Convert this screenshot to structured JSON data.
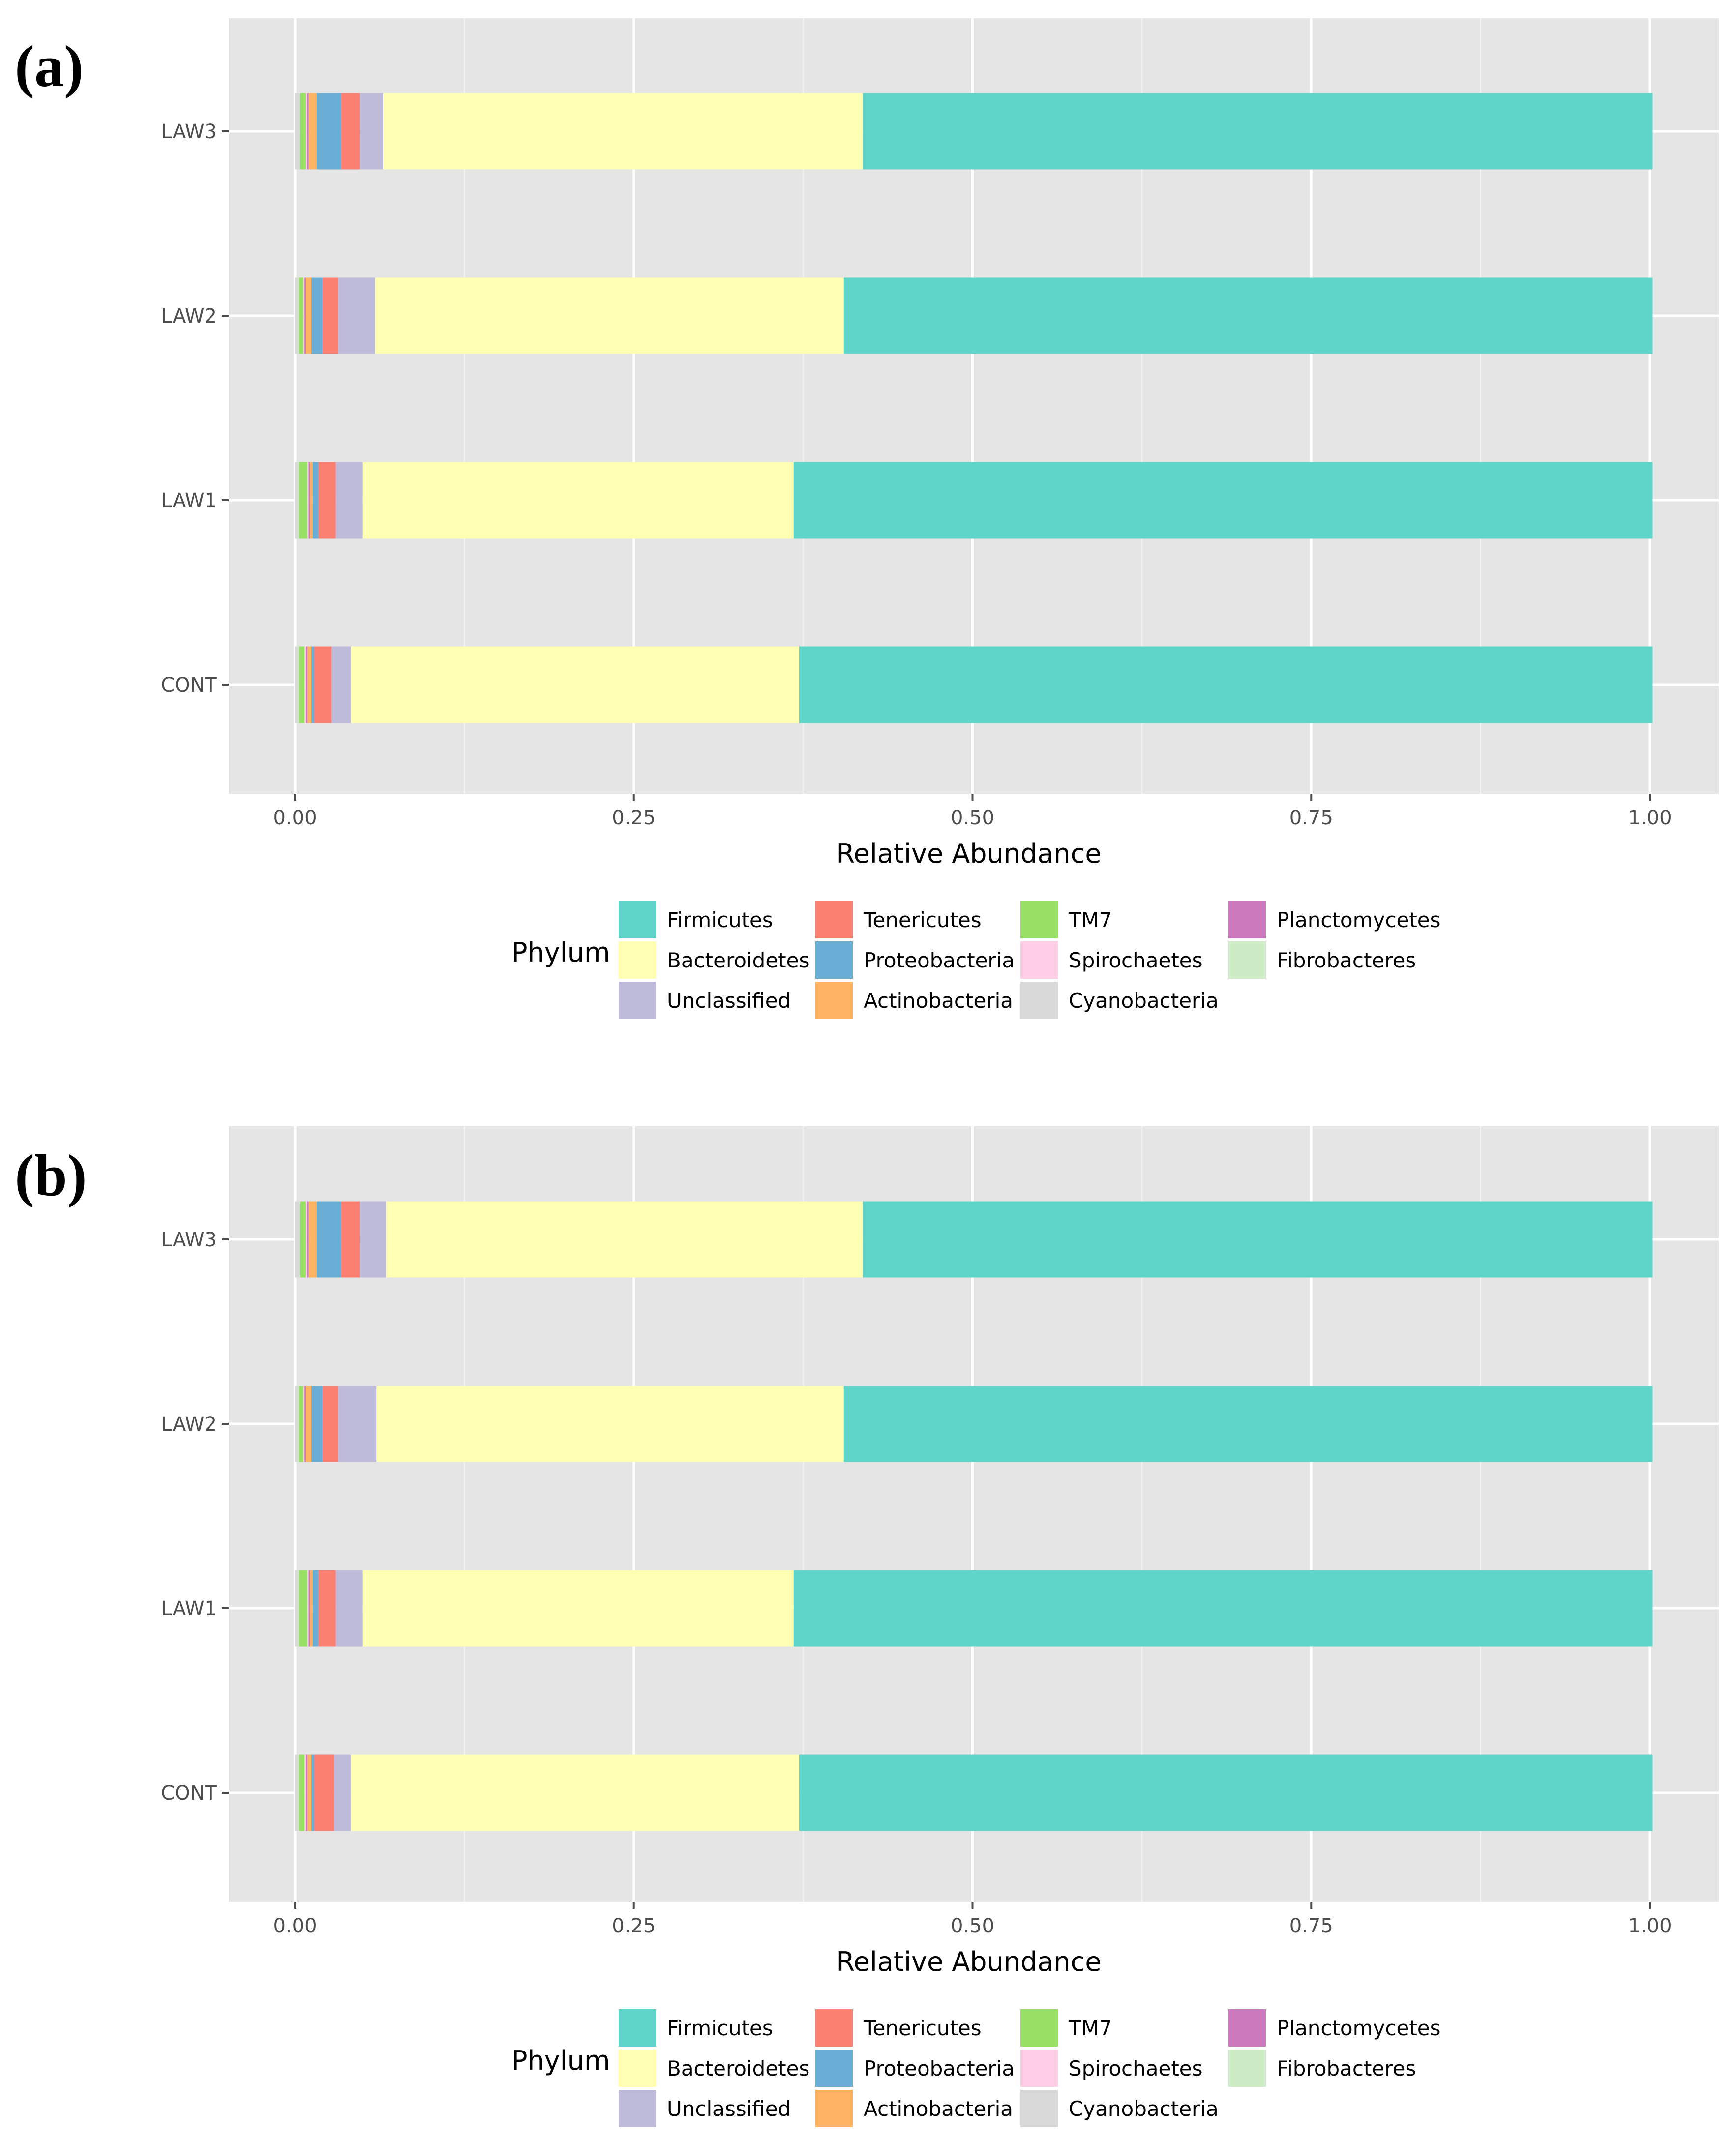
{
  "colors": {
    "panel_bg": "#e5e5e5",
    "grid_major": "#ffffff",
    "grid_minor": "#f0f0f0",
    "tick": "#4d4d4d"
  },
  "chart_data": [
    {
      "type": "bar",
      "orientation": "horizontal",
      "stacked": true,
      "panel_label": "(a)",
      "title": "",
      "xlabel": "Relative Abundance",
      "ylabel": "",
      "xlim": [
        0,
        1
      ],
      "x_ticks": [
        "0.00",
        "0.25",
        "0.50",
        "0.75",
        "1.00"
      ],
      "categories": [
        "CONT",
        "LAW1",
        "LAW2",
        "LAW3"
      ],
      "grid": true,
      "legend": {
        "title": "Phylum",
        "placement": "bottom",
        "columns": [
          [
            "Firmicutes",
            "Bacteroidetes",
            "Unclassified"
          ],
          [
            "Tenericutes",
            "Proteobacteria",
            "Actinobacteria"
          ],
          [
            "TM7",
            "Spirochaetes",
            "Cyanobacteria"
          ],
          [
            "Planctomycetes",
            "Fibrobacteres"
          ]
        ]
      },
      "series": [
        {
          "name": "Cyanobacteria",
          "color": "#d9d9d9",
          "values": [
            0.002,
            0.002,
            0.002,
            0.003
          ]
        },
        {
          "name": "Fibrobacteres",
          "color": "#ccebc5",
          "values": [
            0.001,
            0.001,
            0.001,
            0.001
          ]
        },
        {
          "name": "TM7",
          "color": "#98df65",
          "values": [
            0.004,
            0.006,
            0.003,
            0.004
          ]
        },
        {
          "name": "Spirochaetes",
          "color": "#fccde5",
          "values": [
            0.001,
            0.001,
            0.001,
            0.001
          ]
        },
        {
          "name": "Planctomycetes",
          "color": "#cc78bc",
          "values": [
            0.001,
            0.001,
            0.001,
            0.001
          ]
        },
        {
          "name": "Actinobacteria",
          "color": "#fdb462",
          "values": [
            0.003,
            0.002,
            0.004,
            0.006
          ]
        },
        {
          "name": "Proteobacteria",
          "color": "#6aaed6",
          "values": [
            0.002,
            0.004,
            0.008,
            0.018
          ]
        },
        {
          "name": "Tenericutes",
          "color": "#fb8072",
          "values": [
            0.013,
            0.013,
            0.012,
            0.014
          ]
        },
        {
          "name": "Unclassified",
          "color": "#bebada",
          "values": [
            0.014,
            0.02,
            0.027,
            0.017
          ]
        },
        {
          "name": "Bacteroidetes",
          "color": "#ffffb3",
          "values": [
            0.331,
            0.318,
            0.346,
            0.354
          ]
        },
        {
          "name": "Firmicutes",
          "color": "#5fd4c8",
          "values": [
            0.63,
            0.634,
            0.597,
            0.583
          ]
        }
      ]
    },
    {
      "type": "bar",
      "orientation": "horizontal",
      "stacked": true,
      "panel_label": "(b)",
      "title": "",
      "xlabel": "Relative Abundance",
      "ylabel": "",
      "xlim": [
        0,
        1
      ],
      "x_ticks": [
        "0.00",
        "0.25",
        "0.50",
        "0.75",
        "1.00"
      ],
      "categories": [
        "CONT",
        "LAW1",
        "LAW2",
        "LAW3"
      ],
      "grid": true,
      "legend": {
        "title": "Phylum",
        "placement": "bottom",
        "columns": [
          [
            "Firmicutes",
            "Bacteroidetes",
            "Unclassified"
          ],
          [
            "Tenericutes",
            "Proteobacteria",
            "Actinobacteria"
          ],
          [
            "TM7",
            "Spirochaetes",
            "Cyanobacteria"
          ],
          [
            "Planctomycetes",
            "Fibrobacteres"
          ]
        ]
      },
      "series": [
        {
          "name": "Cyanobacteria",
          "color": "#d9d9d9",
          "values": [
            0.002,
            0.002,
            0.002,
            0.003
          ]
        },
        {
          "name": "Fibrobacteres",
          "color": "#ccebc5",
          "values": [
            0.001,
            0.001,
            0.001,
            0.001
          ]
        },
        {
          "name": "TM7",
          "color": "#98df65",
          "values": [
            0.004,
            0.006,
            0.003,
            0.004
          ]
        },
        {
          "name": "Spirochaetes",
          "color": "#fccde5",
          "values": [
            0.001,
            0.001,
            0.001,
            0.001
          ]
        },
        {
          "name": "Planctomycetes",
          "color": "#cc78bc",
          "values": [
            0.001,
            0.001,
            0.001,
            0.001
          ]
        },
        {
          "name": "Actinobacteria",
          "color": "#fdb462",
          "values": [
            0.003,
            0.002,
            0.004,
            0.006
          ]
        },
        {
          "name": "Proteobacteria",
          "color": "#6aaed6",
          "values": [
            0.002,
            0.004,
            0.008,
            0.018
          ]
        },
        {
          "name": "Tenericutes",
          "color": "#fb8072",
          "values": [
            0.015,
            0.013,
            0.012,
            0.014
          ]
        },
        {
          "name": "Unclassified",
          "color": "#bebada",
          "values": [
            0.012,
            0.02,
            0.028,
            0.019
          ]
        },
        {
          "name": "Bacteroidetes",
          "color": "#ffffb3",
          "values": [
            0.331,
            0.318,
            0.345,
            0.352
          ]
        },
        {
          "name": "Firmicutes",
          "color": "#5fd4c8",
          "values": [
            0.63,
            0.634,
            0.597,
            0.583
          ]
        }
      ]
    }
  ]
}
